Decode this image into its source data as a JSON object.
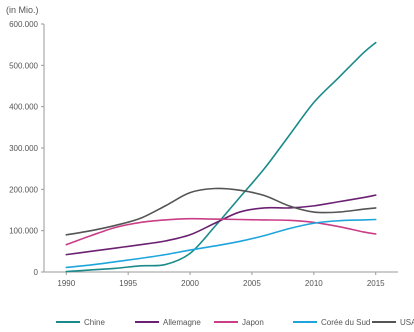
{
  "chart_data": {
    "type": "line",
    "unit_label": "(in Mio.)",
    "x": [
      1990,
      1992,
      1994,
      1996,
      1998,
      2000,
      2002,
      2004,
      2006,
      2008,
      2010,
      2012,
      2014,
      2015
    ],
    "xticks": [
      "1990",
      "1995",
      "2000",
      "2005",
      "2010",
      "2015"
    ],
    "xtick_values": [
      1990,
      1995,
      2000,
      2005,
      2010,
      2015
    ],
    "xlim": [
      1988.2,
      2016.8
    ],
    "ylim": [
      0,
      600000
    ],
    "yticks": [
      "0",
      "100.000",
      "200.000",
      "300.000",
      "400.000",
      "500.000",
      "600.000"
    ],
    "ytick_values": [
      0,
      100000,
      200000,
      300000,
      400000,
      500000,
      600000
    ],
    "grid": false,
    "legend_position": "bottom",
    "series": [
      {
        "name": "Chine",
        "color": "#1a8a8a",
        "values": [
          1000,
          5000,
          9000,
          15000,
          18000,
          45000,
          110000,
          180000,
          250000,
          330000,
          410000,
          470000,
          530000,
          555000
        ]
      },
      {
        "name": "Allemagne",
        "color": "#6b2172",
        "values": [
          42000,
          50000,
          58000,
          66000,
          75000,
          90000,
          118000,
          145000,
          155000,
          155000,
          160000,
          170000,
          180000,
          186000
        ]
      },
      {
        "name": "Japon",
        "color": "#c83e87",
        "values": [
          66000,
          88000,
          108000,
          120000,
          126000,
          129000,
          128000,
          127000,
          126000,
          125000,
          120000,
          110000,
          97000,
          92000
        ]
      },
      {
        "name": "Corée du Sud",
        "color": "#1ea5dc",
        "values": [
          11000,
          17000,
          25000,
          33000,
          42000,
          53000,
          63000,
          74000,
          88000,
          105000,
          118000,
          124000,
          126000,
          127000
        ]
      },
      {
        "name": "USA",
        "color": "#555555",
        "values": [
          90000,
          100000,
          113000,
          130000,
          160000,
          192000,
          202000,
          198000,
          185000,
          160000,
          145000,
          145000,
          152000,
          155000
        ]
      }
    ]
  }
}
